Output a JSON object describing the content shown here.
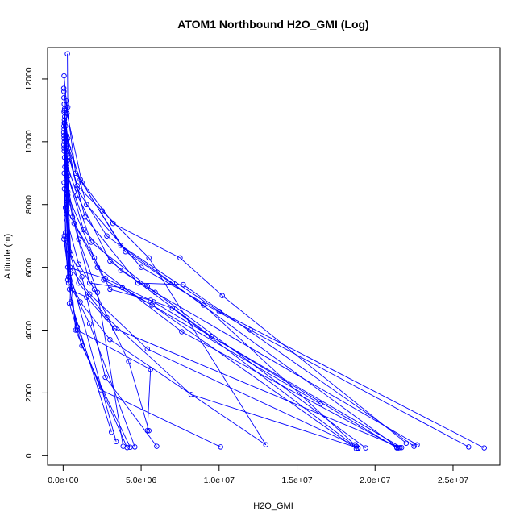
{
  "chart_data": {
    "type": "scatter",
    "title": "ATOM1 Northbound H2O_GMI (Log)",
    "xlabel": "H2O_GMI",
    "ylabel": "Altitude (m)",
    "xlim": [
      -1000000,
      28000000
    ],
    "ylim": [
      -300,
      13000
    ],
    "x_ticks": [
      0,
      5000000,
      10000000,
      15000000,
      20000000,
      25000000
    ],
    "x_tick_labels": [
      "0.0e+00",
      "5.0e+06",
      "1.0e+07",
      "1.5e+07",
      "2.0e+07",
      "2.5e+07"
    ],
    "y_ticks": [
      0,
      2000,
      4000,
      6000,
      8000,
      10000,
      12000
    ],
    "y_tick_labels": [
      "0",
      "2000",
      "4000",
      "6000",
      "8000",
      "10000",
      "12000"
    ],
    "series_color": "#0000ff",
    "mode": "lines+markers",
    "profiles": [
      [
        [
          270000,
          12800
        ],
        [
          300000,
          11100
        ],
        [
          150000,
          10500
        ],
        [
          400000,
          9500
        ],
        [
          900000,
          8600
        ],
        [
          2500000,
          7800
        ],
        [
          5500000,
          6300
        ],
        [
          13000000,
          350
        ]
      ],
      [
        [
          60000,
          12100
        ],
        [
          200000,
          11300
        ],
        [
          800000,
          9000
        ],
        [
          3200000,
          7400
        ],
        [
          7500000,
          6300
        ],
        [
          10200000,
          5100
        ],
        [
          22000000,
          400
        ]
      ],
      [
        [
          40000,
          11700
        ],
        [
          250000,
          10900
        ],
        [
          1200000,
          8700
        ],
        [
          4000000,
          6500
        ],
        [
          9000000,
          4800
        ],
        [
          18700000,
          350
        ]
      ],
      [
        [
          50000,
          11400
        ],
        [
          180000,
          10200
        ],
        [
          900000,
          8500
        ],
        [
          2800000,
          7000
        ],
        [
          7000000,
          5500
        ],
        [
          21500000,
          250
        ]
      ],
      [
        [
          80000,
          11000
        ],
        [
          300000,
          10100
        ],
        [
          1500000,
          8000
        ],
        [
          5000000,
          6000
        ],
        [
          12000000,
          4000
        ],
        [
          26000000,
          280
        ]
      ],
      [
        [
          100000,
          10800
        ],
        [
          350000,
          9800
        ],
        [
          1100000,
          8800
        ],
        [
          3700000,
          6700
        ],
        [
          10000000,
          4600
        ],
        [
          27000000,
          250
        ]
      ],
      [
        [
          70000,
          10600
        ],
        [
          280000,
          9700
        ],
        [
          1400000,
          7600
        ],
        [
          4800000,
          5500
        ],
        [
          7700000,
          5450
        ],
        [
          22500000,
          300
        ]
      ],
      [
        [
          60000,
          10400
        ],
        [
          240000,
          9300
        ],
        [
          900000,
          8300
        ],
        [
          3000000,
          6200
        ],
        [
          9500000,
          3800
        ],
        [
          21700000,
          260
        ]
      ],
      [
        [
          50000,
          10200
        ],
        [
          260000,
          9000
        ],
        [
          1300000,
          7200
        ],
        [
          3700000,
          5900
        ],
        [
          5900000,
          5200
        ],
        [
          22700000,
          350
        ]
      ],
      [
        [
          80000,
          10000
        ],
        [
          320000,
          8900
        ],
        [
          1800000,
          6800
        ],
        [
          5400000,
          5400
        ],
        [
          19400000,
          250
        ]
      ],
      [
        [
          60000,
          9800
        ],
        [
          200000,
          8700
        ],
        [
          700000,
          7400
        ],
        [
          2200000,
          6000
        ],
        [
          7600000,
          3950
        ],
        [
          21400000,
          270
        ]
      ],
      [
        [
          90000,
          9500
        ],
        [
          300000,
          8400
        ],
        [
          600000,
          7600
        ],
        [
          1700000,
          5500
        ],
        [
          3800000,
          5350
        ],
        [
          16500000,
          1650
        ]
      ],
      [
        [
          110000,
          9200
        ],
        [
          250000,
          8000
        ],
        [
          450000,
          6000
        ],
        [
          1700000,
          5150
        ],
        [
          5400000,
          3400
        ],
        [
          18800000,
          300
        ]
      ],
      [
        [
          70000,
          9000
        ],
        [
          150000,
          7900
        ],
        [
          400000,
          6500
        ],
        [
          1000000,
          5500
        ],
        [
          2800000,
          4400
        ],
        [
          8200000,
          1950
        ],
        [
          18900000,
          250
        ]
      ],
      [
        [
          60000,
          8700
        ],
        [
          200000,
          7700
        ],
        [
          350000,
          5700
        ],
        [
          1100000,
          4900
        ],
        [
          3000000,
          3700
        ],
        [
          13000000,
          350
        ]
      ],
      [
        [
          80000,
          8500
        ],
        [
          180000,
          7000
        ],
        [
          300000,
          5600
        ],
        [
          900000,
          4100
        ],
        [
          2400000,
          2100
        ],
        [
          10100000,
          280
        ]
      ],
      [
        [
          50000,
          10500
        ],
        [
          200000,
          9100
        ],
        [
          500000,
          6400
        ],
        [
          1200000,
          5700
        ],
        [
          2700000,
          2500
        ],
        [
          6000000,
          300
        ]
      ],
      [
        [
          40000,
          10300
        ],
        [
          150000,
          7100
        ],
        [
          350000,
          5500
        ],
        [
          900000,
          4000
        ],
        [
          5600000,
          2750
        ],
        [
          5400000,
          800
        ]
      ],
      [
        [
          70000,
          11200
        ],
        [
          250000,
          9600
        ],
        [
          500000,
          5400
        ],
        [
          1700000,
          4200
        ],
        [
          4600000,
          280
        ]
      ],
      [
        [
          60000,
          10100
        ],
        [
          220000,
          8200
        ],
        [
          400000,
          4850
        ],
        [
          1200000,
          3500
        ],
        [
          4300000,
          270
        ]
      ],
      [
        [
          50000,
          9900
        ],
        [
          230000,
          8600
        ],
        [
          500000,
          4900
        ],
        [
          3100000,
          750
        ]
      ],
      [
        [
          80000,
          10700
        ],
        [
          280000,
          9400
        ],
        [
          450000,
          5800
        ],
        [
          3400000,
          450
        ]
      ],
      [
        [
          50000,
          11600
        ],
        [
          200000,
          10000
        ],
        [
          300000,
          6800
        ],
        [
          800000,
          4000
        ],
        [
          4100000,
          260
        ]
      ],
      [
        [
          90000,
          11050
        ],
        [
          200000,
          8800
        ],
        [
          1000000,
          6900
        ],
        [
          2200000,
          5200
        ],
        [
          3850000,
          300
        ]
      ],
      [
        [
          60000,
          10950
        ],
        [
          250000,
          7800
        ],
        [
          2000000,
          6300
        ],
        [
          3000000,
          5300
        ],
        [
          5600000,
          4950
        ],
        [
          7000000,
          4700
        ],
        [
          18900000,
          230
        ]
      ],
      [
        [
          100000,
          10600
        ],
        [
          300000,
          8300
        ],
        [
          2600000,
          5600
        ],
        [
          5700000,
          4800
        ],
        [
          18800000,
          220
        ]
      ],
      [
        [
          70000,
          9700
        ],
        [
          250000,
          7500
        ],
        [
          1000000,
          6100
        ],
        [
          2000000,
          5300
        ],
        [
          4200000,
          3000
        ],
        [
          5500000,
          800
        ]
      ],
      [
        [
          50000,
          6900
        ],
        [
          300000,
          6000
        ],
        [
          2700000,
          5650
        ],
        [
          5800000,
          4900
        ],
        [
          21400000,
          250
        ]
      ],
      [
        [
          80000,
          7000
        ],
        [
          400000,
          5300
        ],
        [
          1500000,
          5050
        ],
        [
          3300000,
          4050
        ],
        [
          21600000,
          260
        ]
      ]
    ]
  }
}
